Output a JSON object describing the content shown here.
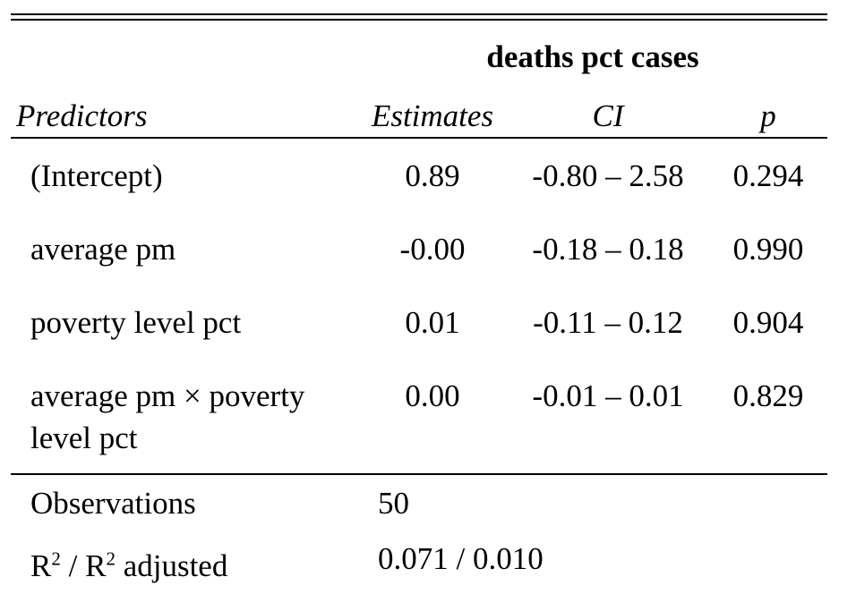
{
  "table": {
    "model_title": "deaths pct cases",
    "headers": {
      "predictors": "Predictors",
      "estimates": "Estimates",
      "ci": "CI",
      "p": "p"
    },
    "rows": [
      {
        "predictor": "(Intercept)",
        "estimate": "0.89",
        "ci": "-0.80 – 2.58",
        "p": "0.294"
      },
      {
        "predictor": "average pm",
        "estimate": "-0.00",
        "ci": "-0.18 – 0.18",
        "p": "0.990"
      },
      {
        "predictor": "poverty level pct",
        "estimate": "0.01",
        "ci": "-0.11 – 0.12",
        "p": "0.904"
      },
      {
        "predictor_line1": "average pm × poverty",
        "predictor_line2": "level pct",
        "estimate": "0.00",
        "ci": "-0.01 – 0.01",
        "p": "0.829"
      }
    ],
    "footer": {
      "observations_label": "Observations",
      "observations_value": "50",
      "r2_label_part1": "R",
      "r2_sup": "2",
      "r2_label_part2": " / R",
      "r2_sup2": "2",
      "r2_label_part3": " adjusted",
      "r2_value": "0.071 / 0.010"
    }
  }
}
